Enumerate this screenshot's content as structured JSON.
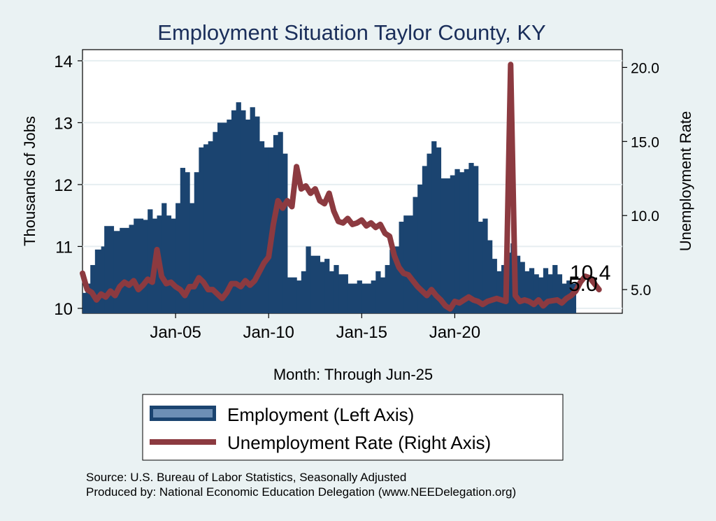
{
  "chart_data": {
    "type": "bar",
    "title": "Employment Situation Taylor  County, KY",
    "xlabel": "Month: Through Jun-25",
    "ylabel_left": "Thousands of Jobs",
    "ylabel_right": "Unemployment Rate",
    "x_ticks": [
      "Jan-05",
      "Jan-10",
      "Jan-15",
      "Jan-20"
    ],
    "y_left_ticks": [
      "10",
      "11",
      "12",
      "13",
      "14"
    ],
    "y_left_range": [
      9.92,
      14.18
    ],
    "y_right_ticks": [
      "5.0",
      "10.0",
      "15.0",
      "20.0"
    ],
    "y_right_range": [
      3.4,
      21.2
    ],
    "x_range_years": [
      2000,
      2029
    ],
    "legend": {
      "placement": "bottom",
      "employment": "Employment (Left Axis)",
      "unemployment": "Unemployment Rate (Right Axis)"
    },
    "end_labels": {
      "employment": "10.4",
      "unemployment": "5.0"
    },
    "colors": {
      "employment": "#1b4470",
      "unemployment": "#8c3a40",
      "background": "#eaf2f3",
      "plot_bg": "#ffffff",
      "grid": "#e6eef1"
    },
    "series": [
      {
        "name": "Employment (Left Axis)",
        "axis": "left",
        "points": [
          [
            2000.0,
            10.25
          ],
          [
            2000.17,
            10.4
          ],
          [
            2000.42,
            10.7
          ],
          [
            2000.67,
            10.95
          ],
          [
            2001.0,
            11.0
          ],
          [
            2001.17,
            11.33
          ],
          [
            2001.67,
            11.25
          ],
          [
            2002.0,
            11.3
          ],
          [
            2002.5,
            11.35
          ],
          [
            2002.75,
            11.45
          ],
          [
            2003.25,
            11.43
          ],
          [
            2003.5,
            11.6
          ],
          [
            2003.75,
            11.45
          ],
          [
            2004.0,
            11.5
          ],
          [
            2004.25,
            11.7
          ],
          [
            2004.5,
            11.5
          ],
          [
            2004.75,
            11.45
          ],
          [
            2005.0,
            11.7
          ],
          [
            2005.25,
            12.27
          ],
          [
            2005.5,
            12.2
          ],
          [
            2005.75,
            11.7
          ],
          [
            2006.0,
            12.2
          ],
          [
            2006.25,
            12.6
          ],
          [
            2006.5,
            12.65
          ],
          [
            2006.75,
            12.7
          ],
          [
            2007.0,
            12.85
          ],
          [
            2007.25,
            13.0
          ],
          [
            2007.75,
            13.05
          ],
          [
            2008.0,
            13.2
          ],
          [
            2008.25,
            13.33
          ],
          [
            2008.5,
            13.2
          ],
          [
            2008.75,
            13.05
          ],
          [
            2009.0,
            13.25
          ],
          [
            2009.25,
            13.1
          ],
          [
            2009.5,
            12.7
          ],
          [
            2009.75,
            12.6
          ],
          [
            2010.0,
            12.6
          ],
          [
            2010.25,
            12.8
          ],
          [
            2010.5,
            12.85
          ],
          [
            2010.75,
            12.5
          ],
          [
            2011.0,
            10.5
          ],
          [
            2011.5,
            10.45
          ],
          [
            2011.75,
            10.6
          ],
          [
            2012.0,
            11.0
          ],
          [
            2012.25,
            10.85
          ],
          [
            2012.75,
            10.75
          ],
          [
            2013.0,
            10.8
          ],
          [
            2013.25,
            10.6
          ],
          [
            2013.5,
            10.7
          ],
          [
            2013.75,
            10.55
          ],
          [
            2014.0,
            10.55
          ],
          [
            2014.25,
            10.4
          ],
          [
            2014.75,
            10.45
          ],
          [
            2015.0,
            10.4
          ],
          [
            2015.5,
            10.45
          ],
          [
            2015.75,
            10.6
          ],
          [
            2016.0,
            10.5
          ],
          [
            2016.25,
            10.7
          ],
          [
            2016.5,
            10.95
          ],
          [
            2016.75,
            11.0
          ],
          [
            2017.0,
            11.4
          ],
          [
            2017.25,
            11.5
          ],
          [
            2017.75,
            11.8
          ],
          [
            2018.0,
            12.0
          ],
          [
            2018.25,
            12.3
          ],
          [
            2018.5,
            12.5
          ],
          [
            2018.75,
            12.7
          ],
          [
            2019.0,
            12.6
          ],
          [
            2019.25,
            12.1
          ],
          [
            2019.75,
            12.15
          ],
          [
            2020.0,
            12.25
          ],
          [
            2020.25,
            12.2
          ],
          [
            2020.5,
            12.25
          ],
          [
            2020.75,
            12.35
          ],
          [
            2021.0,
            12.3
          ],
          [
            2021.25,
            11.4
          ],
          [
            2021.5,
            11.45
          ],
          [
            2021.75,
            11.1
          ],
          [
            2022.0,
            10.8
          ],
          [
            2022.25,
            10.6
          ],
          [
            2022.5,
            10.7
          ],
          [
            2022.75,
            10.9
          ],
          [
            2023.0,
            11.05
          ],
          [
            2023.25,
            10.85
          ],
          [
            2023.5,
            10.75
          ],
          [
            2023.75,
            10.6
          ],
          [
            2024.0,
            10.65
          ],
          [
            2024.25,
            10.55
          ],
          [
            2024.5,
            10.5
          ],
          [
            2024.75,
            10.65
          ],
          [
            2025.0,
            10.55
          ],
          [
            2025.25,
            10.7
          ],
          [
            2025.5,
            10.55
          ],
          [
            2025.75,
            10.4
          ],
          [
            2026.0,
            10.45
          ],
          [
            2026.25,
            10.4
          ]
        ]
      },
      {
        "name": "Unemployment Rate (Right Axis)",
        "axis": "right",
        "points": [
          [
            2000.0,
            6.1
          ],
          [
            2000.25,
            5.0
          ],
          [
            2000.5,
            4.8
          ],
          [
            2000.75,
            4.3
          ],
          [
            2001.0,
            4.7
          ],
          [
            2001.25,
            4.5
          ],
          [
            2001.5,
            4.9
          ],
          [
            2001.75,
            4.6
          ],
          [
            2002.0,
            5.2
          ],
          [
            2002.25,
            5.5
          ],
          [
            2002.5,
            5.3
          ],
          [
            2002.75,
            5.6
          ],
          [
            2003.0,
            5.0
          ],
          [
            2003.25,
            5.3
          ],
          [
            2003.5,
            5.7
          ],
          [
            2003.75,
            5.5
          ],
          [
            2004.0,
            7.7
          ],
          [
            2004.25,
            5.9
          ],
          [
            2004.5,
            5.4
          ],
          [
            2004.75,
            5.5
          ],
          [
            2005.0,
            5.2
          ],
          [
            2005.25,
            5.0
          ],
          [
            2005.5,
            4.6
          ],
          [
            2005.75,
            5.2
          ],
          [
            2006.0,
            5.2
          ],
          [
            2006.25,
            5.8
          ],
          [
            2006.5,
            5.5
          ],
          [
            2006.75,
            5.0
          ],
          [
            2007.0,
            5.0
          ],
          [
            2007.25,
            4.7
          ],
          [
            2007.5,
            4.4
          ],
          [
            2007.75,
            4.8
          ],
          [
            2008.0,
            5.4
          ],
          [
            2008.25,
            5.4
          ],
          [
            2008.5,
            5.2
          ],
          [
            2008.75,
            5.6
          ],
          [
            2009.0,
            5.3
          ],
          [
            2009.25,
            5.6
          ],
          [
            2009.5,
            6.2
          ],
          [
            2009.75,
            6.8
          ],
          [
            2010.0,
            7.2
          ],
          [
            2010.25,
            9.4
          ],
          [
            2010.5,
            11.0
          ],
          [
            2010.75,
            10.5
          ],
          [
            2011.0,
            11.0
          ],
          [
            2011.25,
            10.6
          ],
          [
            2011.5,
            13.3
          ],
          [
            2011.75,
            11.8
          ],
          [
            2012.0,
            12.0
          ],
          [
            2012.25,
            11.5
          ],
          [
            2012.5,
            11.8
          ],
          [
            2012.75,
            11.0
          ],
          [
            2013.0,
            10.8
          ],
          [
            2013.25,
            11.5
          ],
          [
            2013.5,
            10.3
          ],
          [
            2013.75,
            9.6
          ],
          [
            2014.0,
            9.5
          ],
          [
            2014.25,
            9.8
          ],
          [
            2014.5,
            9.4
          ],
          [
            2014.75,
            9.5
          ],
          [
            2015.0,
            9.7
          ],
          [
            2015.25,
            9.3
          ],
          [
            2015.5,
            9.5
          ],
          [
            2015.75,
            9.2
          ],
          [
            2016.0,
            9.4
          ],
          [
            2016.25,
            8.8
          ],
          [
            2016.5,
            8.6
          ],
          [
            2016.75,
            7.3
          ],
          [
            2017.0,
            6.5
          ],
          [
            2017.25,
            6.1
          ],
          [
            2017.5,
            6.0
          ],
          [
            2017.75,
            5.6
          ],
          [
            2018.0,
            5.2
          ],
          [
            2018.25,
            4.9
          ],
          [
            2018.5,
            4.6
          ],
          [
            2018.75,
            5.0
          ],
          [
            2019.0,
            4.6
          ],
          [
            2019.25,
            4.3
          ],
          [
            2019.5,
            3.9
          ],
          [
            2019.75,
            3.7
          ],
          [
            2020.0,
            4.2
          ],
          [
            2020.25,
            4.1
          ],
          [
            2020.5,
            4.3
          ],
          [
            2020.75,
            4.5
          ],
          [
            2021.0,
            4.3
          ],
          [
            2021.25,
            4.2
          ],
          [
            2021.5,
            4.0
          ],
          [
            2021.75,
            4.2
          ],
          [
            2022.0,
            4.3
          ],
          [
            2022.25,
            4.4
          ],
          [
            2022.75,
            4.2
          ],
          [
            2023.0,
            20.2
          ],
          [
            2023.25,
            4.6
          ],
          [
            2023.5,
            4.2
          ],
          [
            2023.75,
            4.3
          ],
          [
            2024.0,
            4.2
          ],
          [
            2024.25,
            4.0
          ],
          [
            2024.5,
            4.3
          ],
          [
            2024.75,
            3.9
          ],
          [
            2025.0,
            4.2
          ],
          [
            2025.5,
            4.3
          ],
          [
            2025.75,
            4.1
          ],
          [
            2026.0,
            4.4
          ],
          [
            2026.25,
            4.6
          ],
          [
            2026.5,
            4.9
          ],
          [
            2026.75,
            5.5
          ],
          [
            2027.0,
            5.9
          ],
          [
            2027.25,
            5.8
          ],
          [
            2027.5,
            5.4
          ],
          [
            2027.75,
            5.0
          ]
        ]
      }
    ]
  },
  "footer": {
    "source": "Source: U.S. Bureau of Labor Statistics, Seasonally Adjusted",
    "produced_by": "Produced by: National Economic Education Delegation (www.NEEDelegation.org)"
  }
}
